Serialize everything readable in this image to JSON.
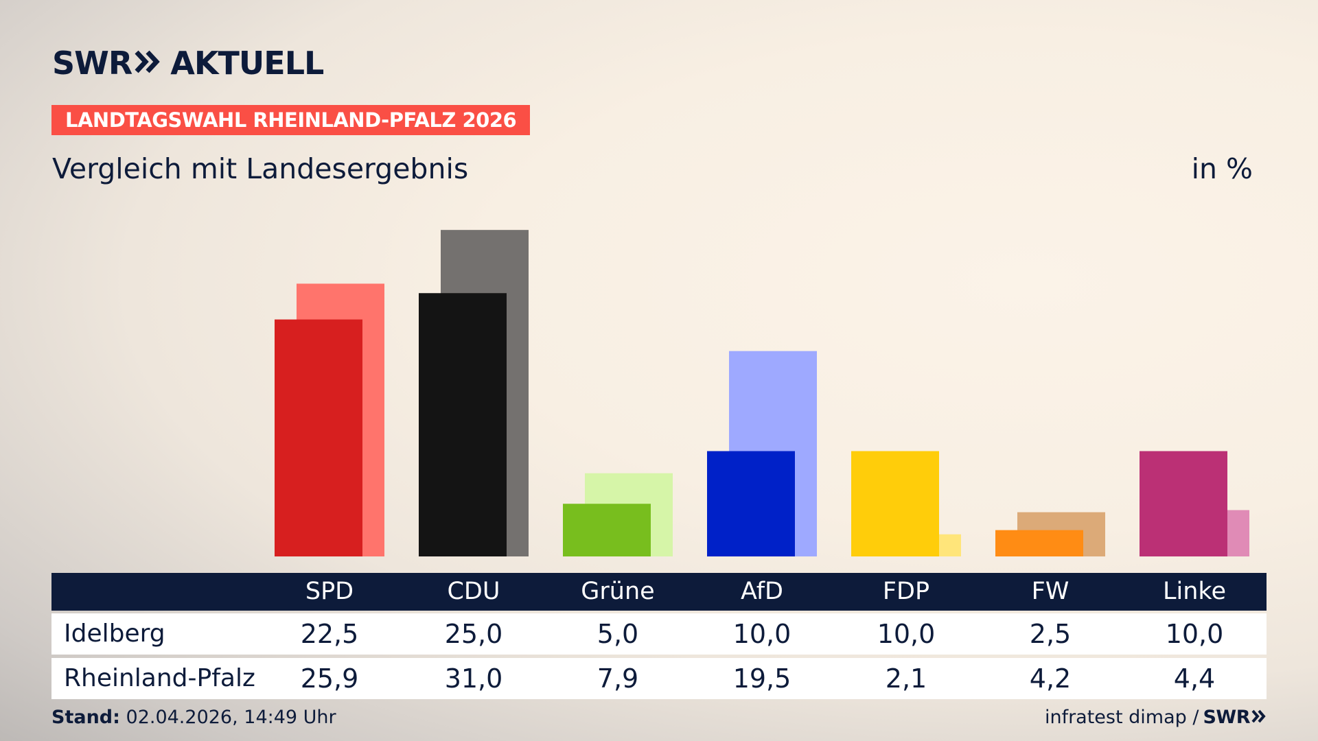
{
  "branding": {
    "logo_swr": "SWR",
    "logo_aktuell": "AKTUELL",
    "icon": "double-chevron-icon",
    "color_navy": "#0d1b3a",
    "color_banner": "#fa4f45"
  },
  "header": {
    "banner": "LANDTAGSWAHL RHEINLAND-PFALZ 2026",
    "subtitle": "Vergleich mit Landesergebnis",
    "unit": "in %"
  },
  "chart_data": {
    "type": "bar",
    "categories": [
      "SPD",
      "CDU",
      "Grüne",
      "AfD",
      "FDP",
      "FW",
      "Linke"
    ],
    "series": [
      {
        "name": "Idelberg",
        "values": [
          22.5,
          25.0,
          5.0,
          10.0,
          10.0,
          2.5,
          10.0
        ],
        "colors": [
          "#d71f1f",
          "#141414",
          "#78be1e",
          "#0021c8",
          "#ffcd0a",
          "#ff8c14",
          "#bb3075"
        ]
      },
      {
        "name": "Rheinland-Pfalz",
        "values": [
          25.9,
          31.0,
          7.9,
          19.5,
          2.1,
          4.2,
          4.4
        ],
        "colors": [
          "#ff746c",
          "#74716f",
          "#d6f5a8",
          "#9ea9ff",
          "#ffe57a",
          "#dcaa78",
          "#e08bb6"
        ]
      }
    ],
    "ylim": [
      0,
      31
    ]
  },
  "table": {
    "headers": [
      "SPD",
      "CDU",
      "Grüne",
      "AfD",
      "FDP",
      "FW",
      "Linke"
    ],
    "rows": [
      {
        "label": "Idelberg",
        "values": [
          "22,5",
          "25,0",
          "5,0",
          "10,0",
          "10,0",
          "2,5",
          "10,0"
        ]
      },
      {
        "label": "Rheinland-Pfalz",
        "values": [
          "25,9",
          "31,0",
          "7,9",
          "19,5",
          "2,1",
          "4,2",
          "4,4"
        ]
      }
    ]
  },
  "footer": {
    "stand_label": "Stand:",
    "stand_value": "02.04.2026, 14:49 Uhr",
    "source": "infratest dimap /",
    "source_brand": "SWR"
  }
}
